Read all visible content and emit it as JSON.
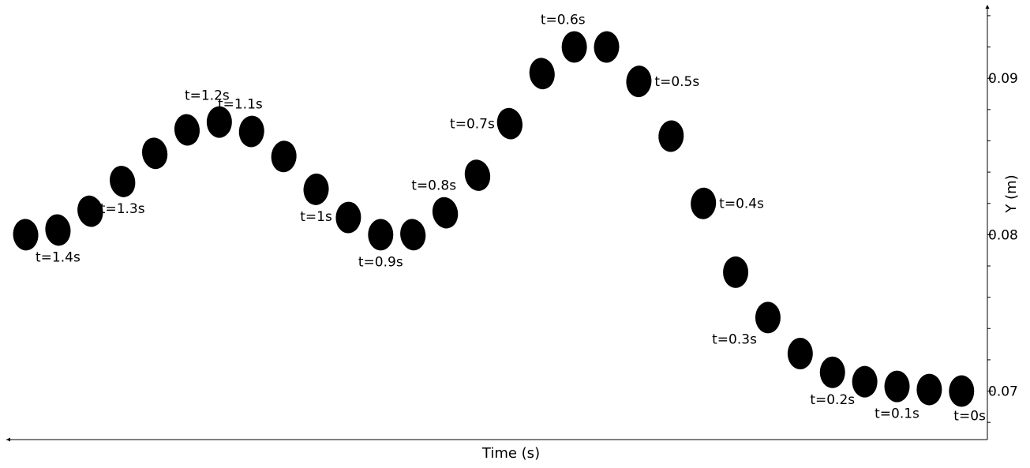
{
  "chart_data": {
    "type": "scatter",
    "title": "",
    "xlabel": "Time (s)",
    "ylabel": "Y (m)",
    "x_inverted": true,
    "xlim": [
      1.48,
      -0.04
    ],
    "ylim": [
      0.0669,
      0.0946
    ],
    "y_axis_side": "right",
    "grid": false,
    "yticks": [
      0.07,
      0.08,
      0.09
    ],
    "ytick_labels": [
      "0.07",
      "0.08",
      "0.09"
    ],
    "y_minor_tick_step": 0.002,
    "marker": {
      "shape": "ellipse",
      "color": "#000000"
    },
    "points": [
      {
        "t": 0.0,
        "y": 0.07,
        "tilt": 0
      },
      {
        "t": 0.05,
        "y": 0.0701,
        "tilt": 0
      },
      {
        "t": 0.1,
        "y": 0.0703,
        "tilt": 0
      },
      {
        "t": 0.15,
        "y": 0.0706,
        "tilt": 0
      },
      {
        "t": 0.2,
        "y": 0.0712,
        "tilt": 0
      },
      {
        "t": 0.25,
        "y": 0.0724,
        "tilt": 0
      },
      {
        "t": 0.3,
        "y": 0.0747,
        "tilt": 0
      },
      {
        "t": 0.35,
        "y": 0.0776,
        "tilt": 0
      },
      {
        "t": 0.4,
        "y": 0.082,
        "tilt": 4
      },
      {
        "t": 0.45,
        "y": 0.0863,
        "tilt": 4
      },
      {
        "t": 0.5,
        "y": 0.0898,
        "tilt": 4
      },
      {
        "t": 0.55,
        "y": 0.092,
        "tilt": 2
      },
      {
        "t": 0.6,
        "y": 0.092,
        "tilt": 0
      },
      {
        "t": 0.65,
        "y": 0.0903,
        "tilt": -8
      },
      {
        "t": 0.7,
        "y": 0.0871,
        "tilt": -10
      },
      {
        "t": 0.75,
        "y": 0.0838,
        "tilt": -12
      },
      {
        "t": 0.8,
        "y": 0.0814,
        "tilt": -12
      },
      {
        "t": 0.85,
        "y": 0.08,
        "tilt": -8
      },
      {
        "t": 0.9,
        "y": 0.08,
        "tilt": 0
      },
      {
        "t": 0.95,
        "y": 0.0811,
        "tilt": 2
      },
      {
        "t": 1.0,
        "y": 0.0829,
        "tilt": 4
      },
      {
        "t": 1.05,
        "y": 0.085,
        "tilt": 4
      },
      {
        "t": 1.1,
        "y": 0.0866,
        "tilt": 4
      },
      {
        "t": 1.15,
        "y": 0.0872,
        "tilt": 0
      },
      {
        "t": 1.2,
        "y": 0.0867,
        "tilt": -6
      },
      {
        "t": 1.25,
        "y": 0.0852,
        "tilt": -10
      },
      {
        "t": 1.3,
        "y": 0.0834,
        "tilt": -12
      },
      {
        "t": 1.35,
        "y": 0.0815,
        "tilt": -12
      },
      {
        "t": 1.4,
        "y": 0.0803,
        "tilt": -8
      },
      {
        "t": 1.45,
        "y": 0.08,
        "tilt": -4
      }
    ],
    "annotations": [
      {
        "text": "t=0s",
        "t": 0.0,
        "y": 0.07,
        "place": "below-right"
      },
      {
        "text": "t=0.1s",
        "t": 0.1,
        "y": 0.0703,
        "place": "below"
      },
      {
        "text": "t=0.2s",
        "t": 0.2,
        "y": 0.0712,
        "place": "below"
      },
      {
        "text": "t=0.3s",
        "t": 0.3,
        "y": 0.0747,
        "place": "below-left"
      },
      {
        "text": "t=0.4s",
        "t": 0.4,
        "y": 0.082,
        "place": "right"
      },
      {
        "text": "t=0.5s",
        "t": 0.5,
        "y": 0.0898,
        "place": "right"
      },
      {
        "text": "t=0.6s",
        "t": 0.6,
        "y": 0.092,
        "place": "above-left"
      },
      {
        "text": "t=0.7s",
        "t": 0.7,
        "y": 0.0871,
        "place": "left"
      },
      {
        "text": "t=0.8s",
        "t": 0.8,
        "y": 0.0814,
        "place": "above-left"
      },
      {
        "text": "t=0.9s",
        "t": 0.9,
        "y": 0.08,
        "place": "below"
      },
      {
        "text": "t=1s",
        "t": 1.0,
        "y": 0.0829,
        "place": "below"
      },
      {
        "text": "t=1.1s",
        "t": 1.1,
        "y": 0.0866,
        "place": "above-left"
      },
      {
        "text": "t=1.2s",
        "t": 1.2,
        "y": 0.0872,
        "place": "above-right"
      },
      {
        "text": "t=1.3s",
        "t": 1.3,
        "y": 0.0834,
        "place": "below"
      },
      {
        "text": "t=1.4s",
        "t": 1.4,
        "y": 0.0803,
        "place": "below"
      }
    ]
  }
}
